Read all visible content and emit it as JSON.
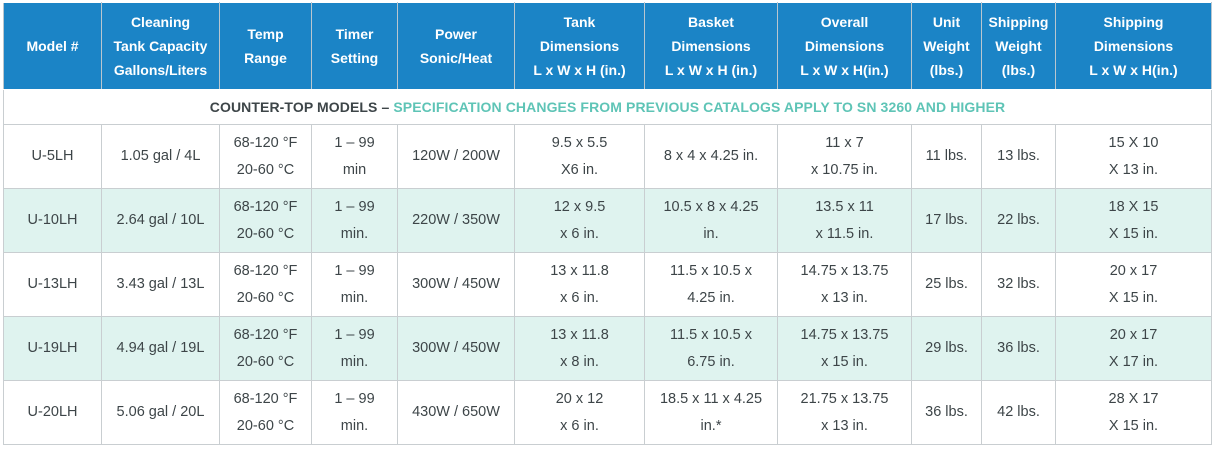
{
  "headers": [
    [
      "Model #"
    ],
    [
      "Cleaning",
      "Tank Capacity",
      "Gallons/Liters"
    ],
    [
      "Temp",
      "Range"
    ],
    [
      "Timer",
      "Setting"
    ],
    [
      "Power",
      "Sonic/Heat"
    ],
    [
      "Tank",
      "Dimensions",
      "L x W x H (in.)"
    ],
    [
      "Basket",
      "Dimensions",
      "L x W x H (in.)"
    ],
    [
      "Overall",
      "Dimensions",
      "L x W x H(in.)"
    ],
    [
      "Unit",
      "Weight",
      "(lbs.)"
    ],
    [
      "Shipping",
      "Weight",
      "(lbs.)"
    ],
    [
      "Shipping",
      "Dimensions",
      "L x W x H(in.)"
    ]
  ],
  "banner": {
    "dark": "COUNTER-TOP MODELS – ",
    "teal": "SPECIFICATION CHANGES FROM PREVIOUS CATALOGS APPLY TO SN 3260 AND HIGHER"
  },
  "rows": [
    [
      [
        "U-5LH"
      ],
      [
        "1.05 gal / 4L"
      ],
      [
        "68-120 °F",
        "20-60 °C"
      ],
      [
        "1 – 99",
        "min"
      ],
      [
        "120W / 200W"
      ],
      [
        "9.5 x 5.5",
        "X6 in."
      ],
      [
        "8 x 4 x 4.25 in."
      ],
      [
        "11 x 7",
        "x 10.75 in."
      ],
      [
        "11 lbs."
      ],
      [
        "13 lbs."
      ],
      [
        "15 X 10",
        "X 13 in."
      ]
    ],
    [
      [
        "U-10LH"
      ],
      [
        "2.64 gal / 10L"
      ],
      [
        "68-120 °F",
        "20-60 °C"
      ],
      [
        "1 – 99",
        "min."
      ],
      [
        "220W / 350W"
      ],
      [
        "12 x 9.5",
        "x 6 in."
      ],
      [
        "10.5 x 8 x 4.25",
        "in."
      ],
      [
        "13.5 x 11",
        "x 11.5 in."
      ],
      [
        "17 lbs."
      ],
      [
        "22 lbs."
      ],
      [
        "18 X 15",
        "X 15 in."
      ]
    ],
    [
      [
        "U-13LH"
      ],
      [
        "3.43 gal / 13L"
      ],
      [
        "68-120 °F",
        "20-60 °C"
      ],
      [
        "1 – 99",
        "min."
      ],
      [
        "300W / 450W"
      ],
      [
        "13 x 11.8",
        "x 6 in."
      ],
      [
        "11.5 x 10.5 x",
        "4.25 in."
      ],
      [
        "14.75 x 13.75",
        "x 13 in."
      ],
      [
        "25 lbs."
      ],
      [
        "32 lbs."
      ],
      [
        "20 x 17",
        "X 15 in."
      ]
    ],
    [
      [
        "U-19LH"
      ],
      [
        "4.94 gal / 19L"
      ],
      [
        "68-120 °F",
        "20-60 °C"
      ],
      [
        "1 – 99",
        "min."
      ],
      [
        "300W / 450W"
      ],
      [
        "13 x 11.8",
        "x 8 in."
      ],
      [
        "11.5 x 10.5 x",
        "6.75 in."
      ],
      [
        "14.75 x 13.75",
        "x 15 in."
      ],
      [
        "29 lbs."
      ],
      [
        "36 lbs."
      ],
      [
        "20 x 17",
        "X 17 in."
      ]
    ],
    [
      [
        "U-20LH"
      ],
      [
        "5.06 gal / 20L"
      ],
      [
        "68-120 °F",
        "20-60 °C"
      ],
      [
        "1 – 99",
        "min."
      ],
      [
        "430W / 650W"
      ],
      [
        "20 x 12",
        "x 6 in."
      ],
      [
        "18.5 x 11 x 4.25",
        "in.*"
      ],
      [
        "21.75 x 13.75",
        "x 13 in."
      ],
      [
        "36 lbs."
      ],
      [
        "42 lbs."
      ],
      [
        "28 X 17",
        "X 15 in."
      ]
    ]
  ],
  "colors": {
    "header_bg": "#1b84c6",
    "alt_row_bg": "#dff3ef",
    "banner_teal": "#5ec4b6",
    "text": "#3d4548"
  }
}
